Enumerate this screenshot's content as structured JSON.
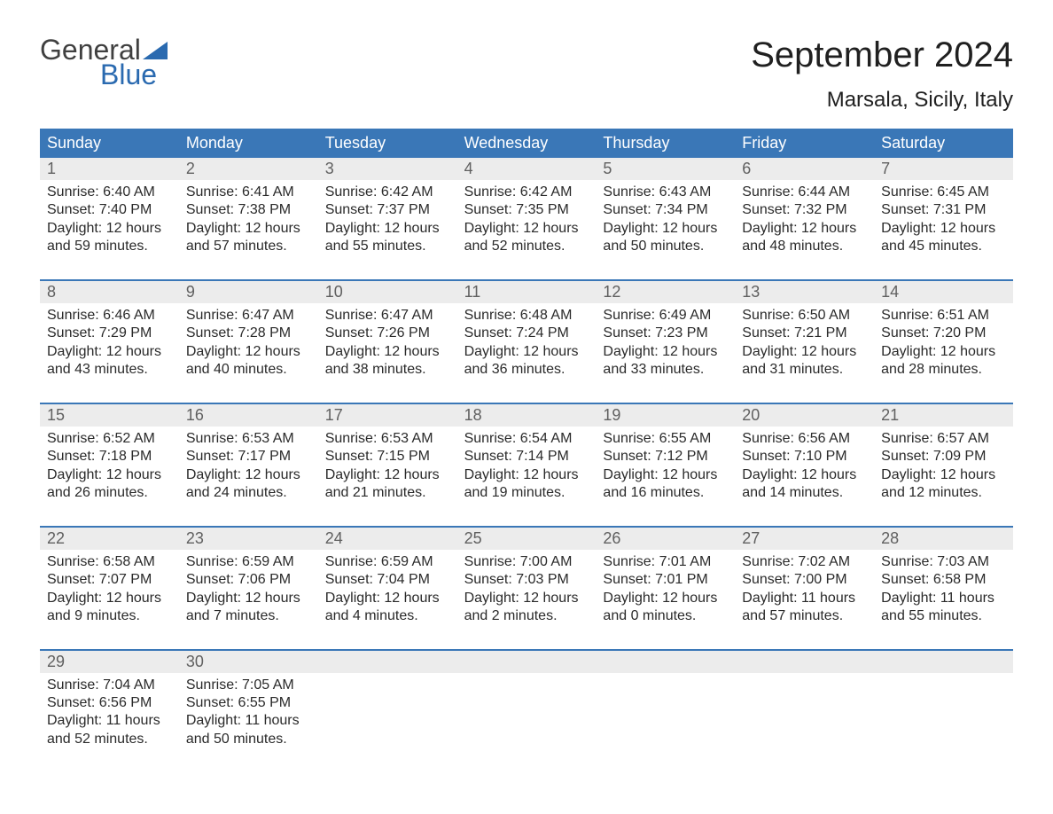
{
  "logo": {
    "top": "General",
    "bottom": "Blue"
  },
  "title": "September 2024",
  "location": "Marsala, Sicily, Italy",
  "colors": {
    "header_bg": "#3a77b7",
    "header_text": "#ffffff",
    "daynum_bg": "#ececec",
    "daynum_text": "#606060",
    "body_text": "#2a2a2a",
    "logo_gray": "#404040",
    "logo_blue": "#2a6ab0",
    "week_border": "#3a77b7"
  },
  "day_labels": [
    "Sunday",
    "Monday",
    "Tuesday",
    "Wednesday",
    "Thursday",
    "Friday",
    "Saturday"
  ],
  "weeks": [
    [
      {
        "n": "1",
        "sunrise": "Sunrise: 6:40 AM",
        "sunset": "Sunset: 7:40 PM",
        "d1": "Daylight: 12 hours",
        "d2": "and 59 minutes."
      },
      {
        "n": "2",
        "sunrise": "Sunrise: 6:41 AM",
        "sunset": "Sunset: 7:38 PM",
        "d1": "Daylight: 12 hours",
        "d2": "and 57 minutes."
      },
      {
        "n": "3",
        "sunrise": "Sunrise: 6:42 AM",
        "sunset": "Sunset: 7:37 PM",
        "d1": "Daylight: 12 hours",
        "d2": "and 55 minutes."
      },
      {
        "n": "4",
        "sunrise": "Sunrise: 6:42 AM",
        "sunset": "Sunset: 7:35 PM",
        "d1": "Daylight: 12 hours",
        "d2": "and 52 minutes."
      },
      {
        "n": "5",
        "sunrise": "Sunrise: 6:43 AM",
        "sunset": "Sunset: 7:34 PM",
        "d1": "Daylight: 12 hours",
        "d2": "and 50 minutes."
      },
      {
        "n": "6",
        "sunrise": "Sunrise: 6:44 AM",
        "sunset": "Sunset: 7:32 PM",
        "d1": "Daylight: 12 hours",
        "d2": "and 48 minutes."
      },
      {
        "n": "7",
        "sunrise": "Sunrise: 6:45 AM",
        "sunset": "Sunset: 7:31 PM",
        "d1": "Daylight: 12 hours",
        "d2": "and 45 minutes."
      }
    ],
    [
      {
        "n": "8",
        "sunrise": "Sunrise: 6:46 AM",
        "sunset": "Sunset: 7:29 PM",
        "d1": "Daylight: 12 hours",
        "d2": "and 43 minutes."
      },
      {
        "n": "9",
        "sunrise": "Sunrise: 6:47 AM",
        "sunset": "Sunset: 7:28 PM",
        "d1": "Daylight: 12 hours",
        "d2": "and 40 minutes."
      },
      {
        "n": "10",
        "sunrise": "Sunrise: 6:47 AM",
        "sunset": "Sunset: 7:26 PM",
        "d1": "Daylight: 12 hours",
        "d2": "and 38 minutes."
      },
      {
        "n": "11",
        "sunrise": "Sunrise: 6:48 AM",
        "sunset": "Sunset: 7:24 PM",
        "d1": "Daylight: 12 hours",
        "d2": "and 36 minutes."
      },
      {
        "n": "12",
        "sunrise": "Sunrise: 6:49 AM",
        "sunset": "Sunset: 7:23 PM",
        "d1": "Daylight: 12 hours",
        "d2": "and 33 minutes."
      },
      {
        "n": "13",
        "sunrise": "Sunrise: 6:50 AM",
        "sunset": "Sunset: 7:21 PM",
        "d1": "Daylight: 12 hours",
        "d2": "and 31 minutes."
      },
      {
        "n": "14",
        "sunrise": "Sunrise: 6:51 AM",
        "sunset": "Sunset: 7:20 PM",
        "d1": "Daylight: 12 hours",
        "d2": "and 28 minutes."
      }
    ],
    [
      {
        "n": "15",
        "sunrise": "Sunrise: 6:52 AM",
        "sunset": "Sunset: 7:18 PM",
        "d1": "Daylight: 12 hours",
        "d2": "and 26 minutes."
      },
      {
        "n": "16",
        "sunrise": "Sunrise: 6:53 AM",
        "sunset": "Sunset: 7:17 PM",
        "d1": "Daylight: 12 hours",
        "d2": "and 24 minutes."
      },
      {
        "n": "17",
        "sunrise": "Sunrise: 6:53 AM",
        "sunset": "Sunset: 7:15 PM",
        "d1": "Daylight: 12 hours",
        "d2": "and 21 minutes."
      },
      {
        "n": "18",
        "sunrise": "Sunrise: 6:54 AM",
        "sunset": "Sunset: 7:14 PM",
        "d1": "Daylight: 12 hours",
        "d2": "and 19 minutes."
      },
      {
        "n": "19",
        "sunrise": "Sunrise: 6:55 AM",
        "sunset": "Sunset: 7:12 PM",
        "d1": "Daylight: 12 hours",
        "d2": "and 16 minutes."
      },
      {
        "n": "20",
        "sunrise": "Sunrise: 6:56 AM",
        "sunset": "Sunset: 7:10 PM",
        "d1": "Daylight: 12 hours",
        "d2": "and 14 minutes."
      },
      {
        "n": "21",
        "sunrise": "Sunrise: 6:57 AM",
        "sunset": "Sunset: 7:09 PM",
        "d1": "Daylight: 12 hours",
        "d2": "and 12 minutes."
      }
    ],
    [
      {
        "n": "22",
        "sunrise": "Sunrise: 6:58 AM",
        "sunset": "Sunset: 7:07 PM",
        "d1": "Daylight: 12 hours",
        "d2": "and 9 minutes."
      },
      {
        "n": "23",
        "sunrise": "Sunrise: 6:59 AM",
        "sunset": "Sunset: 7:06 PM",
        "d1": "Daylight: 12 hours",
        "d2": "and 7 minutes."
      },
      {
        "n": "24",
        "sunrise": "Sunrise: 6:59 AM",
        "sunset": "Sunset: 7:04 PM",
        "d1": "Daylight: 12 hours",
        "d2": "and 4 minutes."
      },
      {
        "n": "25",
        "sunrise": "Sunrise: 7:00 AM",
        "sunset": "Sunset: 7:03 PM",
        "d1": "Daylight: 12 hours",
        "d2": "and 2 minutes."
      },
      {
        "n": "26",
        "sunrise": "Sunrise: 7:01 AM",
        "sunset": "Sunset: 7:01 PM",
        "d1": "Daylight: 12 hours",
        "d2": "and 0 minutes."
      },
      {
        "n": "27",
        "sunrise": "Sunrise: 7:02 AM",
        "sunset": "Sunset: 7:00 PM",
        "d1": "Daylight: 11 hours",
        "d2": "and 57 minutes."
      },
      {
        "n": "28",
        "sunrise": "Sunrise: 7:03 AM",
        "sunset": "Sunset: 6:58 PM",
        "d1": "Daylight: 11 hours",
        "d2": "and 55 minutes."
      }
    ],
    [
      {
        "n": "29",
        "sunrise": "Sunrise: 7:04 AM",
        "sunset": "Sunset: 6:56 PM",
        "d1": "Daylight: 11 hours",
        "d2": "and 52 minutes."
      },
      {
        "n": "30",
        "sunrise": "Sunrise: 7:05 AM",
        "sunset": "Sunset: 6:55 PM",
        "d1": "Daylight: 11 hours",
        "d2": "and 50 minutes."
      },
      {
        "empty": true
      },
      {
        "empty": true
      },
      {
        "empty": true
      },
      {
        "empty": true
      },
      {
        "empty": true
      }
    ]
  ]
}
